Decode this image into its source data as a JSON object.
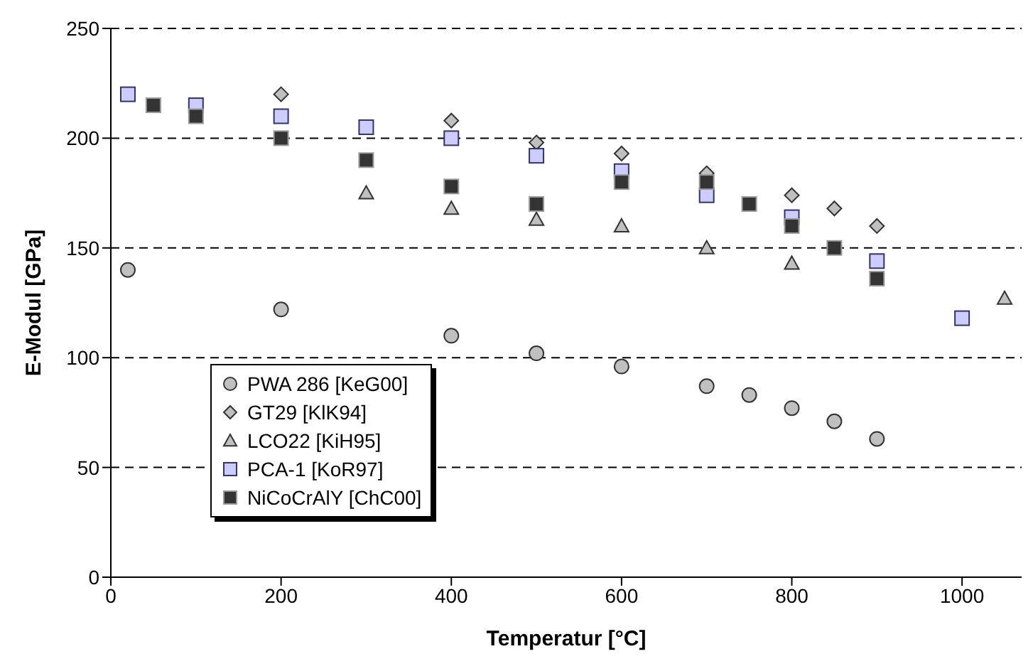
{
  "chart_data": {
    "type": "scatter",
    "xlabel": "Temperatur [°C]",
    "ylabel": "E-Modul [GPa]",
    "xlim": [
      0,
      1070
    ],
    "xticks": [
      0,
      200,
      400,
      600,
      800,
      1000
    ],
    "ylim": [
      0,
      250
    ],
    "yticks": [
      0,
      50,
      100,
      150,
      200,
      250
    ],
    "grid": "y",
    "legend": "bottom left",
    "series": [
      {
        "name": "PWA 286 [KeG00]",
        "color": "#c0c0c0",
        "marker": "circle",
        "x": [
          20,
          200,
          400,
          500,
          600,
          700,
          750,
          800,
          850,
          900
        ],
        "values": [
          140,
          122,
          110,
          102,
          96,
          87,
          83,
          77,
          71,
          63
        ]
      },
      {
        "name": "GT29 [KlK94]",
        "color": "#c0c0c0",
        "marker": "diamond",
        "x": [
          200,
          400,
          500,
          600,
          700,
          800,
          850,
          900
        ],
        "values": [
          220,
          208,
          198,
          193,
          184,
          174,
          168,
          160
        ]
      },
      {
        "name": "LCO22 [KiH95]",
        "color": "#c0c0c0",
        "marker": "triangle",
        "x": [
          300,
          400,
          500,
          600,
          700,
          800,
          1050
        ],
        "values": [
          175,
          168,
          163,
          160,
          150,
          143,
          127
        ]
      },
      {
        "name": "PCA-1 [KoR97]",
        "color": "#ccccff",
        "marker": "square",
        "x": [
          20,
          100,
          200,
          300,
          400,
          500,
          600,
          700,
          800,
          900,
          1000
        ],
        "values": [
          220,
          215,
          210,
          205,
          200,
          192,
          185,
          174,
          164,
          144,
          118
        ]
      },
      {
        "name": "NiCoCrAlY [ChC00]",
        "color": "#333333",
        "marker": "square",
        "x": [
          50,
          100,
          200,
          300,
          400,
          500,
          600,
          700,
          750,
          800,
          850,
          900
        ],
        "values": [
          215,
          210,
          200,
          190,
          178,
          170,
          180,
          180,
          170,
          160,
          150,
          136
        ]
      }
    ]
  }
}
